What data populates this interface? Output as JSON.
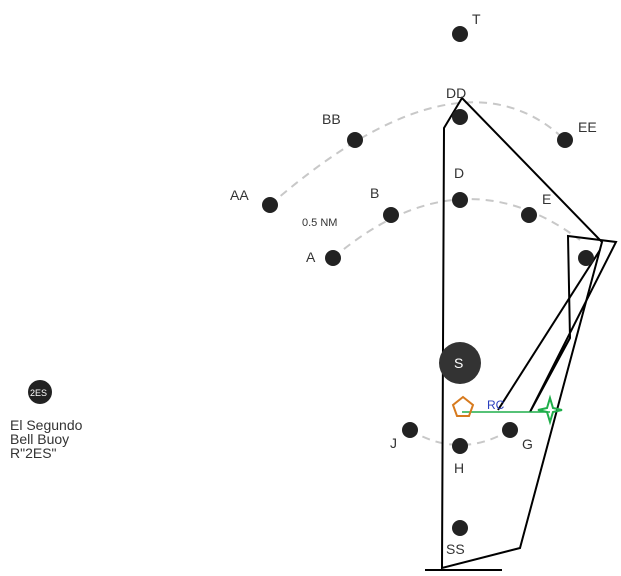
{
  "marks": {
    "T": "T",
    "DD": "DD",
    "BB": "BB",
    "EE": "EE",
    "D": "D",
    "B": "B",
    "E": "E",
    "AA": "AA",
    "A": "A",
    "S": "S",
    "J": "J",
    "G": "G",
    "H": "H",
    "SS": "SS",
    "RC": "RC"
  },
  "scale_label": "0.5 NM",
  "legend": {
    "badge": "2ES",
    "line1": "El Segundo",
    "line2": "Bell Buoy",
    "line3": "R\"2ES\""
  },
  "colors": {
    "mark": "#222222",
    "arc": "#c8c8c8",
    "course": "#000000",
    "pentagon": "#d77a1e",
    "star": "#1fae4a",
    "rc": "#2a3fbf"
  }
}
